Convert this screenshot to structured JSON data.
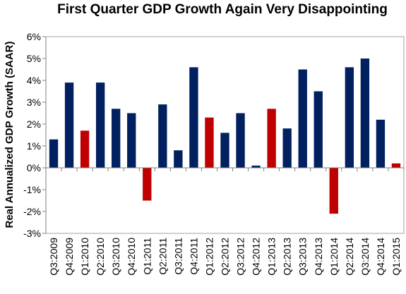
{
  "chart_data": {
    "type": "bar",
    "title": "First Quarter GDP Growth Again Very Disappointing",
    "xlabel": "",
    "ylabel": "Real Annualized GDP Growth (SAAR)",
    "ylim": [
      -3,
      6
    ],
    "ytick_values": [
      -3,
      -2,
      -1,
      0,
      1,
      2,
      3,
      4,
      5,
      6
    ],
    "ytick_labels": [
      "-3%",
      "-2%",
      "-1%",
      "0%",
      "1%",
      "2%",
      "3%",
      "4%",
      "5%",
      "6%"
    ],
    "grid": false,
    "categories": [
      "Q3:2009",
      "Q4:2009",
      "Q1:2010",
      "Q2:2010",
      "Q3:2010",
      "Q4:2010",
      "Q1:2011",
      "Q2:2011",
      "Q3:2011",
      "Q4:2011",
      "Q1:2012",
      "Q2:2012",
      "Q3:2012",
      "Q4:2012",
      "Q1:2013",
      "Q2:2013",
      "Q3:2013",
      "Q4:2013",
      "Q1:2014",
      "Q2:2014",
      "Q3:2014",
      "Q4:2014",
      "Q1:2015"
    ],
    "values": [
      1.3,
      3.9,
      1.7,
      3.9,
      2.7,
      2.5,
      -1.5,
      2.9,
      0.8,
      4.6,
      2.3,
      1.6,
      2.5,
      0.1,
      2.7,
      1.8,
      4.5,
      3.5,
      -2.1,
      4.6,
      5.0,
      2.2,
      0.2
    ],
    "colors": {
      "first_quarter": "#c00000",
      "other_quarters": "#002060"
    },
    "highlighted_categories": [
      "Q1:2010",
      "Q1:2011",
      "Q1:2012",
      "Q1:2013",
      "Q1:2014",
      "Q1:2015"
    ]
  }
}
